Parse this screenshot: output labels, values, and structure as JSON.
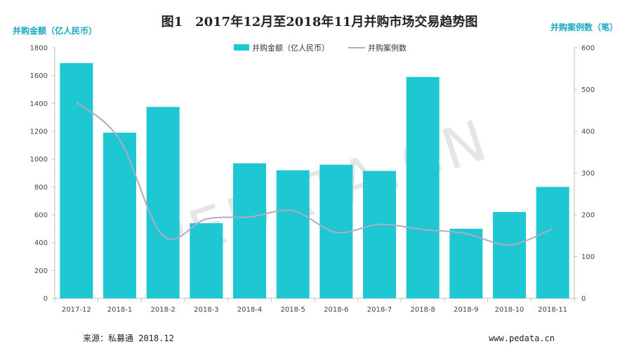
{
  "chart_data": {
    "type": "bar",
    "title": "图1　2017年12月至2018年11月并购市场交易趋势图",
    "ylabel_left": "并购金额（亿人民币）",
    "ylabel_right": "并购案例数（笔）",
    "categories": [
      "2017-12",
      "2018-1",
      "2018-2",
      "2018-3",
      "2018-4",
      "2018-5",
      "2018-6",
      "2018-7",
      "2018-8",
      "2018-9",
      "2018-10",
      "2018-11"
    ],
    "series": [
      {
        "name": "并购金额（亿人民币）",
        "type": "bar",
        "axis": "left",
        "color": "#1ec8d2",
        "values": [
          1690,
          1190,
          1375,
          540,
          970,
          920,
          960,
          915,
          1590,
          500,
          620,
          800
        ]
      },
      {
        "name": "并购案例数",
        "type": "line",
        "axis": "right",
        "color": "#b3a9c4",
        "values": [
          470,
          380,
          150,
          190,
          195,
          210,
          158,
          177,
          165,
          155,
          128,
          167
        ]
      }
    ],
    "ylim_left": [
      0,
      1800
    ],
    "yticks_left": [
      0,
      200,
      400,
      600,
      800,
      1000,
      1200,
      1400,
      1600,
      1800
    ],
    "ylim_right": [
      0,
      600
    ],
    "yticks_right": [
      0,
      100,
      200,
      300,
      400,
      500,
      600
    ],
    "legend": "top-center",
    "grid": false
  },
  "watermark": "PEDATA.CN",
  "footer": {
    "source": "来源：私募通 2018.12",
    "url": "www.pedata.cn"
  },
  "colors": {
    "bar": "#1ec8d2",
    "line": "#b3a9c4",
    "accent": "#1aa7c2"
  }
}
